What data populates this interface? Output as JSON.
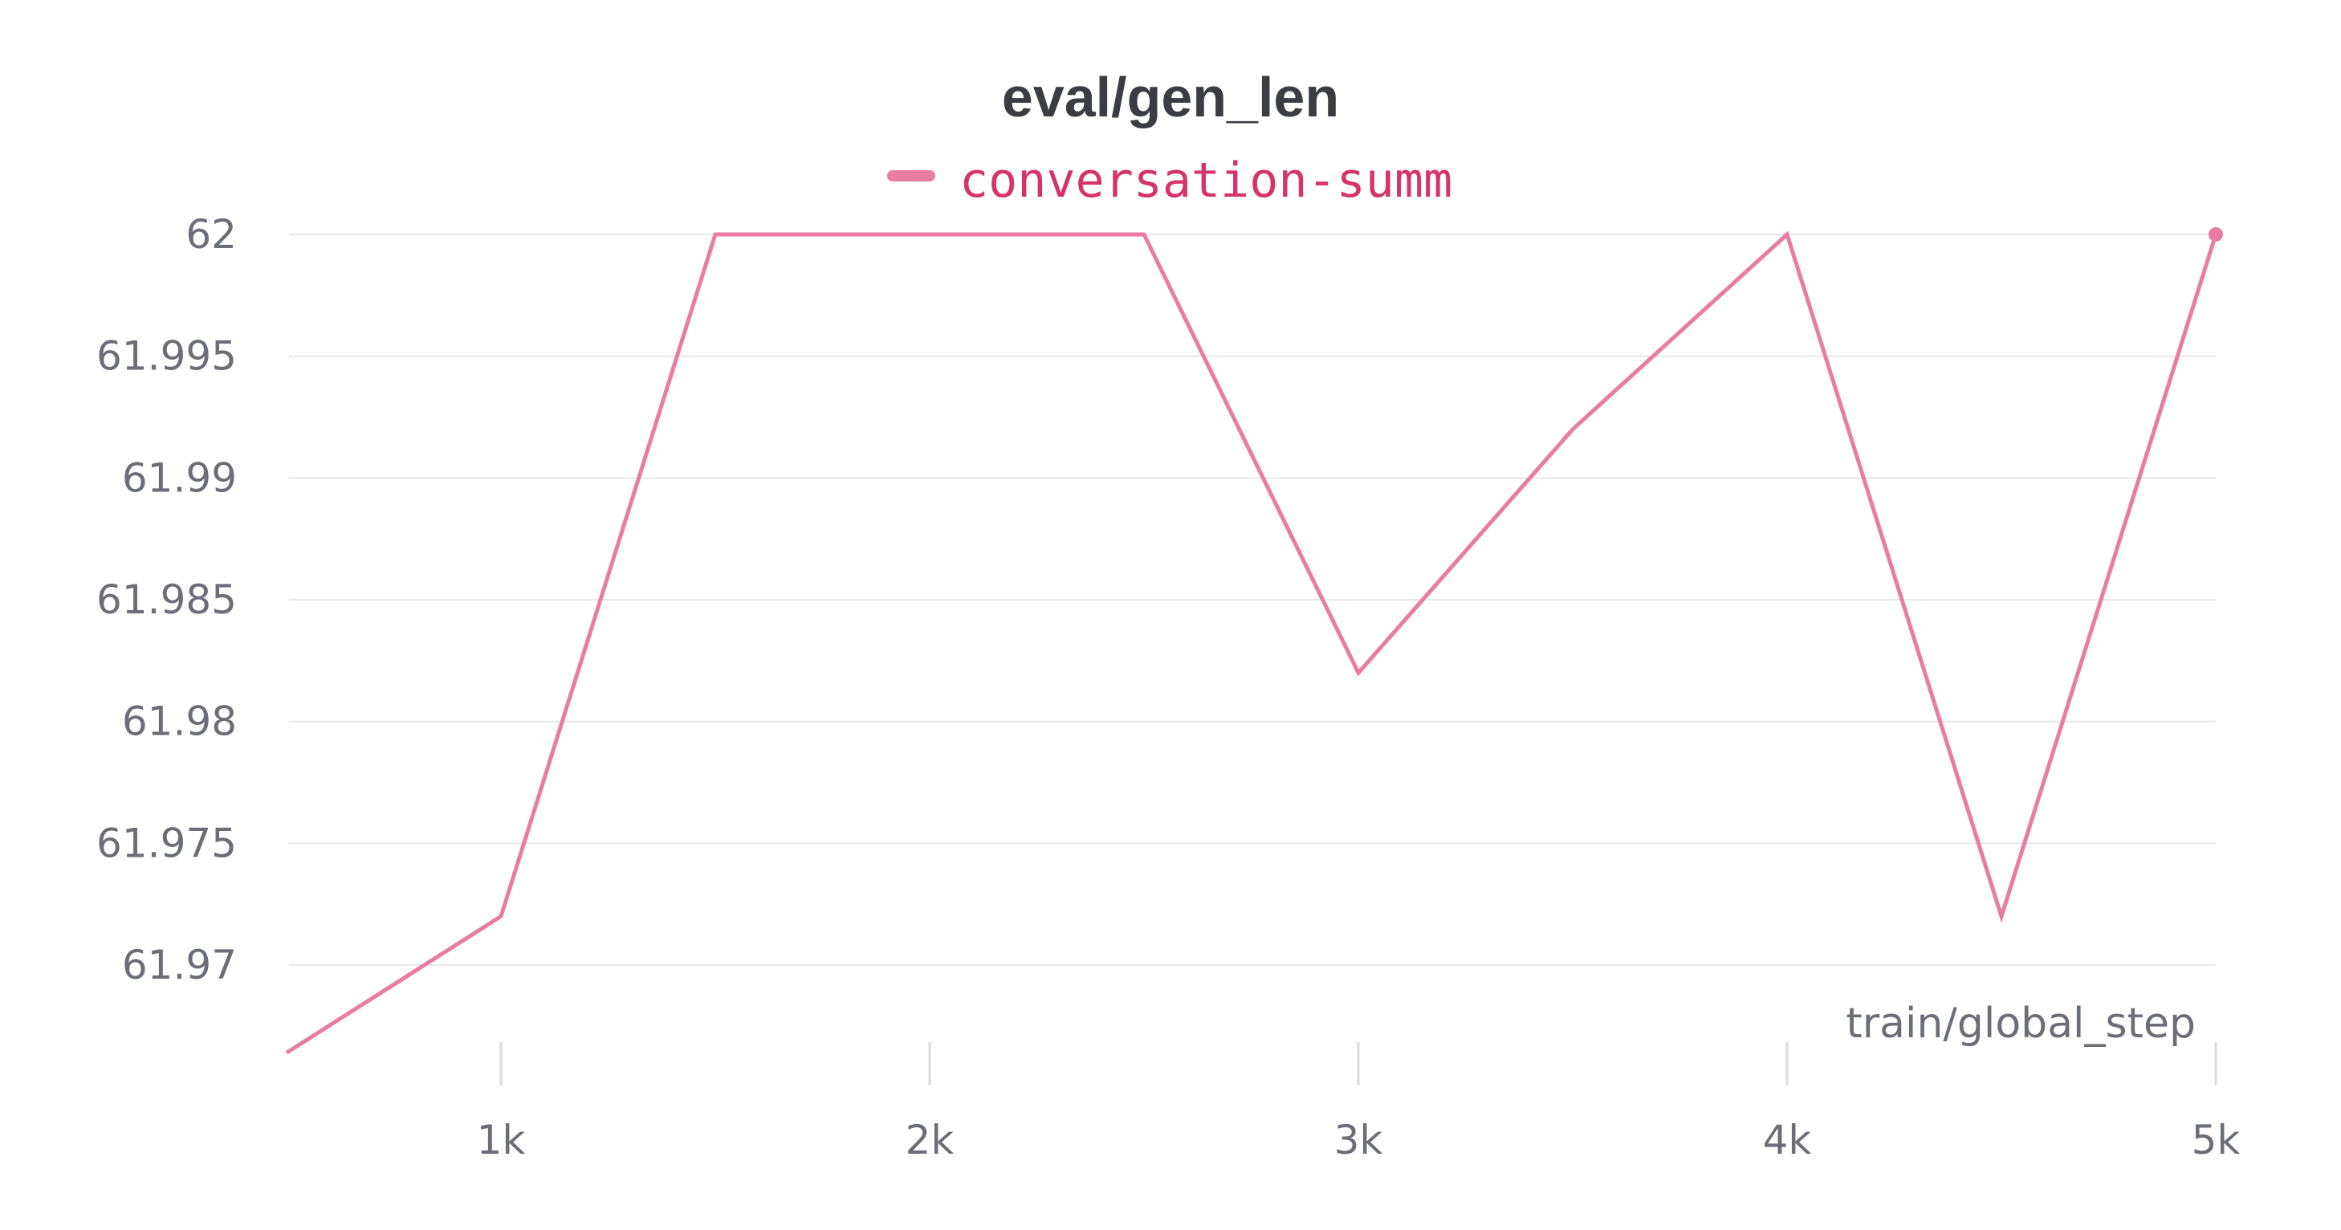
{
  "chart_data": {
    "type": "line",
    "title": "eval/gen_len",
    "xlabel": "train/global_step",
    "ylabel": "",
    "xlim": [
      500,
      5000
    ],
    "ylim": [
      61.9663,
      62
    ],
    "grid": true,
    "legend": "top-center",
    "x_ticks": [
      1000,
      2000,
      3000,
      4000,
      5000
    ],
    "x_tick_labels": [
      "1k",
      "2k",
      "3k",
      "4k",
      "5k"
    ],
    "y_ticks": [
      61.97,
      61.975,
      61.98,
      61.985,
      61.99,
      61.995,
      62
    ],
    "y_tick_labels": [
      "61.97",
      "61.975",
      "61.98",
      "61.985",
      "61.99",
      "61.995",
      "62"
    ],
    "series": [
      {
        "name": "conversation-summ",
        "color": "#e87ca3",
        "legend_text_color": "#d6336c",
        "x": [
          500,
          1000,
          1500,
          2000,
          2500,
          3000,
          3500,
          4000,
          4500,
          5000
        ],
        "y": [
          61.9664,
          61.972,
          62,
          62,
          62,
          61.982,
          61.992,
          62,
          61.972,
          62
        ]
      }
    ]
  }
}
